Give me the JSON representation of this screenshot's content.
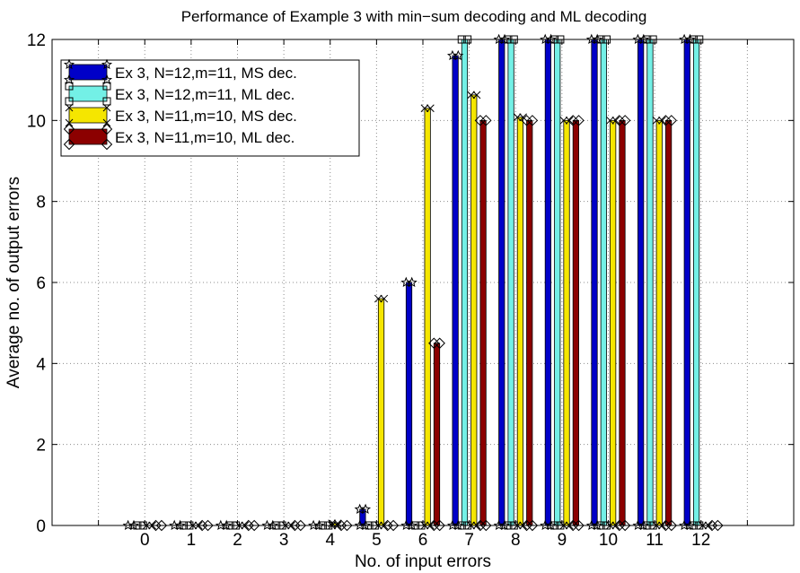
{
  "chart_data": {
    "type": "bar",
    "title": "Performance of Example 3 with min−sum decoding and ML decoding",
    "xlabel": "No. of input errors",
    "ylabel": "Average no. of output errors",
    "categories": [
      "0",
      "1",
      "2",
      "3",
      "4",
      "5",
      "6",
      "7",
      "8",
      "9",
      "10",
      "11",
      "12"
    ],
    "ylim": [
      0,
      12
    ],
    "yticks": [
      0,
      2,
      4,
      6,
      8,
      10,
      12
    ],
    "grid": true,
    "legend_position": "top-left",
    "series": [
      {
        "name": "Ex 3, N=12,m=11, MS dec.",
        "color": "#0000c8",
        "marker": "star",
        "values": [
          0,
          0,
          0,
          0,
          0,
          0.4,
          6.0,
          11.6,
          12,
          12,
          12,
          12,
          12
        ]
      },
      {
        "name": "Ex 3, N=12,m=11, ML dec.",
        "color": "#73f0e6",
        "marker": "square",
        "values": [
          0,
          0,
          0,
          0,
          0,
          0,
          0,
          12,
          12,
          12,
          12,
          12,
          12
        ]
      },
      {
        "name": "Ex 3, N=11,m=10, MS dec.",
        "color": "#f5e600",
        "marker": "x",
        "values": [
          0,
          0,
          0,
          0,
          0.05,
          5.6,
          10.3,
          10.63,
          10.08,
          10.0,
          10.0,
          10.0,
          0
        ]
      },
      {
        "name": "Ex 3, N=11,m=10, ML dec.",
        "color": "#8c0000",
        "marker": "diamond",
        "values": [
          0,
          0,
          0,
          0,
          0,
          0,
          4.5,
          10.0,
          10.0,
          10.0,
          10.0,
          10.0,
          0
        ]
      }
    ]
  }
}
